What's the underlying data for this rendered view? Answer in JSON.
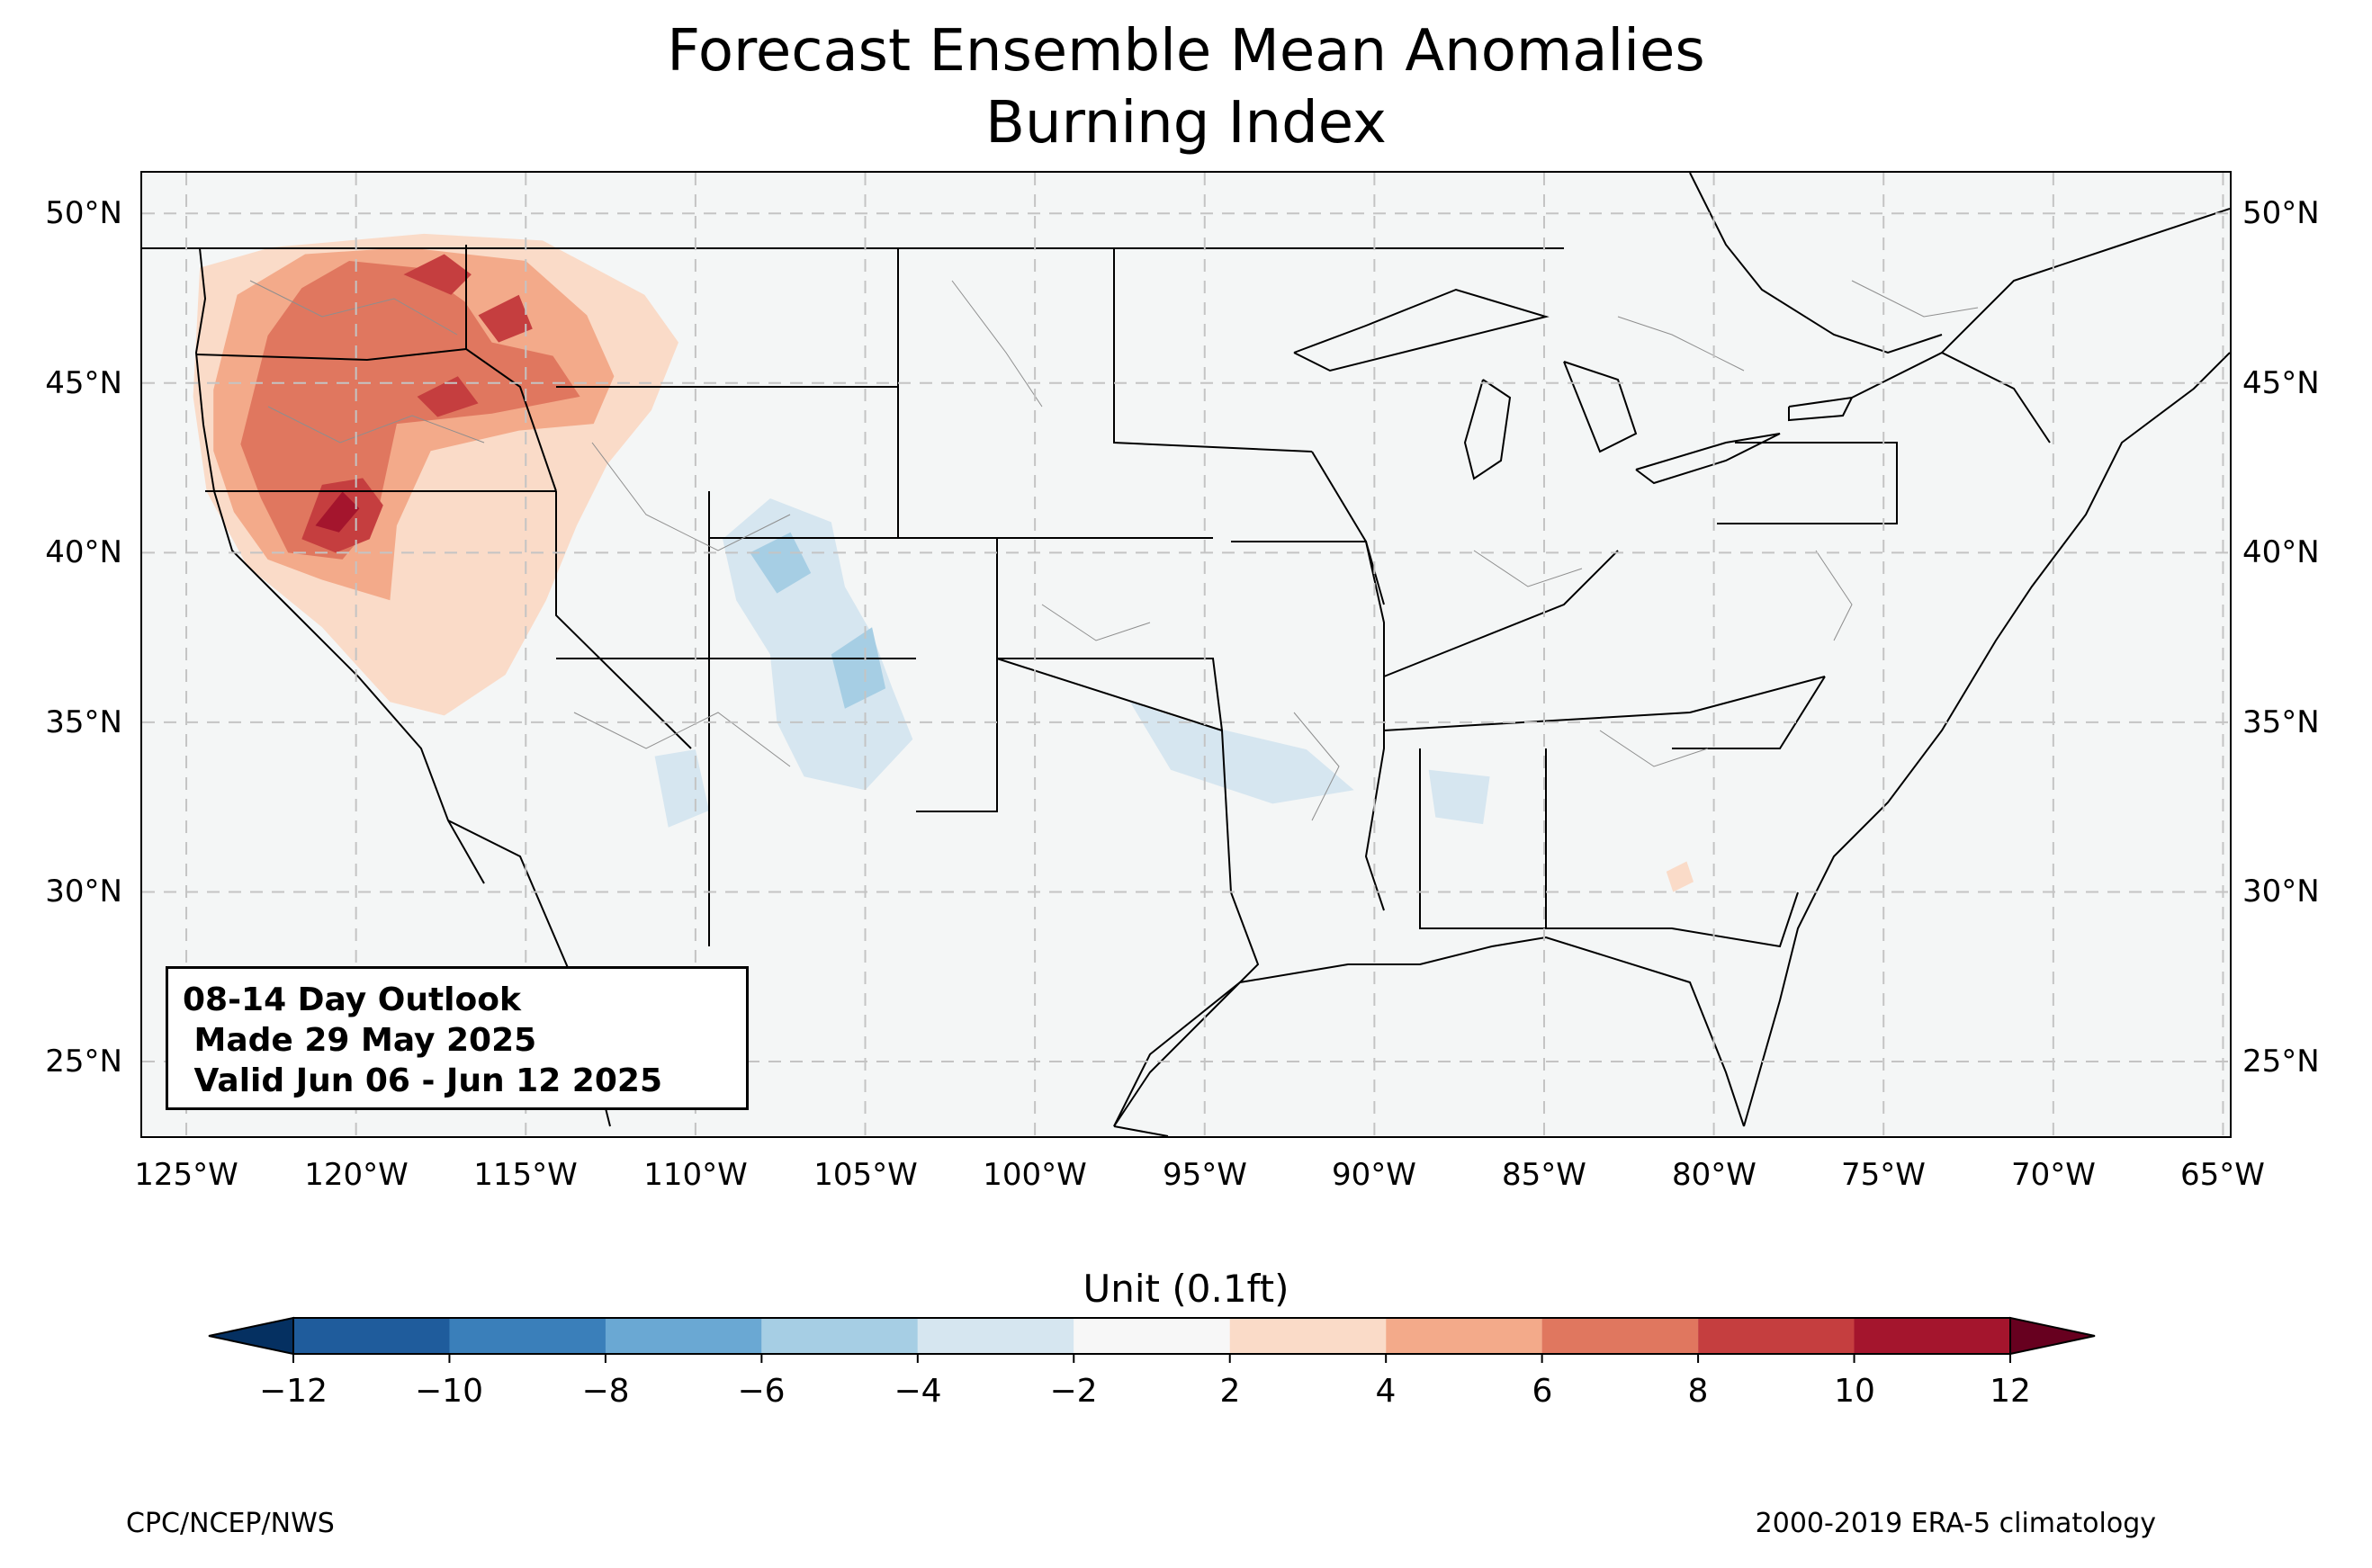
{
  "title": {
    "line1": "Forecast Ensemble Mean Anomalies",
    "line2": "Burning Index"
  },
  "outlook_box": {
    "line1": "08-14 Day Outlook",
    "line2": " Made 29 May 2025",
    "line3": " Valid Jun 06 - Jun 12 2025"
  },
  "map": {
    "projection": "plate-carree",
    "lon_range": [
      -126.3,
      -64.8
    ],
    "lat_range": [
      22.8,
      51.2
    ],
    "grid": true,
    "lat_ticks": [
      "25°N",
      "30°N",
      "35°N",
      "40°N",
      "45°N",
      "50°N"
    ],
    "lat_tick_values": [
      25,
      30,
      35,
      40,
      45,
      50
    ],
    "lon_ticks": [
      "125°W",
      "120°W",
      "115°W",
      "110°W",
      "105°W",
      "100°W",
      "95°W",
      "90°W",
      "85°W",
      "80°W",
      "75°W",
      "70°W",
      "65°W"
    ],
    "lon_tick_values": [
      -125,
      -120,
      -115,
      -110,
      -105,
      -100,
      -95,
      -90,
      -85,
      -80,
      -75,
      -70,
      -65
    ],
    "anomaly_regions": [
      {
        "class": "2 to 4",
        "polygon": [
          [
            -124.6,
            48.4
          ],
          [
            -122.5,
            49.0
          ],
          [
            -118.0,
            49.4
          ],
          [
            -114.5,
            49.2
          ],
          [
            -111.5,
            47.6
          ],
          [
            -110.5,
            46.2
          ],
          [
            -111.3,
            44.2
          ],
          [
            -112.6,
            42.6
          ],
          [
            -113.5,
            40.8
          ],
          [
            -114.4,
            38.6
          ],
          [
            -115.6,
            36.4
          ],
          [
            -117.4,
            35.2
          ],
          [
            -119.0,
            35.6
          ],
          [
            -121.0,
            37.8
          ],
          [
            -123.2,
            39.6
          ],
          [
            -124.4,
            41.8
          ],
          [
            -124.8,
            44.6
          ]
        ]
      },
      {
        "class": "4 to 6",
        "polygon": [
          [
            -124.2,
            44.8
          ],
          [
            -123.5,
            47.6
          ],
          [
            -121.5,
            48.8
          ],
          [
            -118.5,
            49.0
          ],
          [
            -115.0,
            48.6
          ],
          [
            -113.2,
            47.0
          ],
          [
            -112.4,
            45.2
          ],
          [
            -113.0,
            43.8
          ],
          [
            -115.2,
            43.6
          ],
          [
            -117.8,
            43.0
          ],
          [
            -118.8,
            40.8
          ],
          [
            -119.0,
            38.6
          ],
          [
            -121.0,
            39.2
          ],
          [
            -122.6,
            39.8
          ],
          [
            -123.6,
            41.2
          ],
          [
            -124.2,
            43.0
          ]
        ]
      },
      {
        "class": "6 to 8",
        "polygon": [
          [
            -123.4,
            43.2
          ],
          [
            -122.6,
            46.4
          ],
          [
            -121.6,
            47.8
          ],
          [
            -120.2,
            48.6
          ],
          [
            -118.2,
            48.4
          ],
          [
            -116.8,
            47.4
          ],
          [
            -116.0,
            46.2
          ],
          [
            -114.2,
            45.8
          ],
          [
            -113.4,
            44.6
          ],
          [
            -116.0,
            44.1
          ],
          [
            -118.8,
            43.8
          ],
          [
            -119.4,
            41.0
          ],
          [
            -120.4,
            39.8
          ],
          [
            -122.0,
            40.0
          ],
          [
            -122.8,
            41.6
          ]
        ]
      },
      {
        "class": "8 to 10",
        "polygon": [
          [
            -121.6,
            40.4
          ],
          [
            -121.0,
            42.0
          ],
          [
            -119.8,
            42.2
          ],
          [
            -119.2,
            41.4
          ],
          [
            -119.6,
            40.4
          ],
          [
            -120.6,
            40.0
          ]
        ]
      },
      {
        "class": "8 to 10",
        "polygon": [
          [
            -118.6,
            48.2
          ],
          [
            -117.4,
            48.8
          ],
          [
            -116.6,
            48.2
          ],
          [
            -117.2,
            47.6
          ]
        ]
      },
      {
        "class": "8 to 10",
        "polygon": [
          [
            -116.4,
            47.0
          ],
          [
            -115.2,
            47.6
          ],
          [
            -114.8,
            46.6
          ],
          [
            -115.8,
            46.2
          ]
        ]
      },
      {
        "class": "8 to 10",
        "polygon": [
          [
            -118.2,
            44.6
          ],
          [
            -117.0,
            45.2
          ],
          [
            -116.4,
            44.4
          ],
          [
            -117.6,
            44.0
          ]
        ]
      },
      {
        "class": "10 to 12",
        "polygon": [
          [
            -121.2,
            40.8
          ],
          [
            -120.4,
            41.8
          ],
          [
            -119.9,
            41.3
          ],
          [
            -120.5,
            40.6
          ]
        ]
      },
      {
        "class": "-4 to -2",
        "polygon": [
          [
            -109.2,
            40.4
          ],
          [
            -107.8,
            41.6
          ],
          [
            -106.0,
            40.9
          ],
          [
            -105.6,
            39.0
          ],
          [
            -104.8,
            37.6
          ],
          [
            -104.2,
            36.0
          ],
          [
            -103.6,
            34.5
          ],
          [
            -105.0,
            33.0
          ],
          [
            -106.8,
            33.4
          ],
          [
            -107.6,
            35.0
          ],
          [
            -107.8,
            37.0
          ],
          [
            -108.8,
            38.6
          ]
        ]
      },
      {
        "class": "-4 to -2",
        "polygon": [
          [
            -111.2,
            34.0
          ],
          [
            -110.0,
            34.2
          ],
          [
            -109.6,
            32.4
          ],
          [
            -110.8,
            31.9
          ]
        ]
      },
      {
        "class": "-4 to -2",
        "polygon": [
          [
            -97.2,
            35.6
          ],
          [
            -95.4,
            35.0
          ],
          [
            -92.0,
            34.2
          ],
          [
            -90.6,
            33.0
          ],
          [
            -93.0,
            32.6
          ],
          [
            -96.0,
            33.6
          ]
        ]
      },
      {
        "class": "-4 to -2",
        "polygon": [
          [
            -88.4,
            33.6
          ],
          [
            -86.6,
            33.4
          ],
          [
            -86.8,
            32.0
          ],
          [
            -88.2,
            32.2
          ]
        ]
      },
      {
        "class": "-6 to -4",
        "polygon": [
          [
            -108.4,
            40.0
          ],
          [
            -107.2,
            40.6
          ],
          [
            -106.6,
            39.4
          ],
          [
            -107.6,
            38.8
          ]
        ]
      },
      {
        "class": "-6 to -4",
        "polygon": [
          [
            -106.0,
            37.0
          ],
          [
            -104.8,
            37.8
          ],
          [
            -104.4,
            36.0
          ],
          [
            -105.6,
            35.4
          ]
        ]
      },
      {
        "class": "2 to 4",
        "polygon": [
          [
            -81.4,
            30.6
          ],
          [
            -80.8,
            30.9
          ],
          [
            -80.6,
            30.3
          ],
          [
            -81.2,
            30.0
          ]
        ]
      }
    ],
    "features": [
      "coastlines",
      "country borders",
      "state borders",
      "county/climate division lines",
      "great lakes"
    ]
  },
  "colorbar": {
    "title": "Unit (0.1ft)",
    "ticks": [
      "−12",
      "−10",
      "−8",
      "−6",
      "−4",
      "−2",
      "2",
      "4",
      "6",
      "8",
      "10",
      "12"
    ],
    "tick_values": [
      -12,
      -10,
      -8,
      -6,
      -4,
      -2,
      2,
      4,
      6,
      8,
      10,
      12
    ],
    "extend": "both",
    "colors": {
      "under": "#053061",
      "-12 to -10": "#1f5c9c",
      "-10 to -8": "#3a7fba",
      "-8 to -6": "#6aa8d3",
      "-6 to -4": "#a6cee4",
      "-4 to -2": "#d6e6f0",
      "-2 to 2": "#f7f7f7",
      "2 to 4": "#fadbc8",
      "4 to 6": "#f3aa8a",
      "6 to 8": "#e0775f",
      "8 to 10": "#c53e3f",
      "10 to 12": "#a4152d",
      "over": "#67001f"
    }
  },
  "footer": {
    "left": "CPC/NCEP/NWS",
    "right": "2000-2019 ERA-5 climatology"
  }
}
